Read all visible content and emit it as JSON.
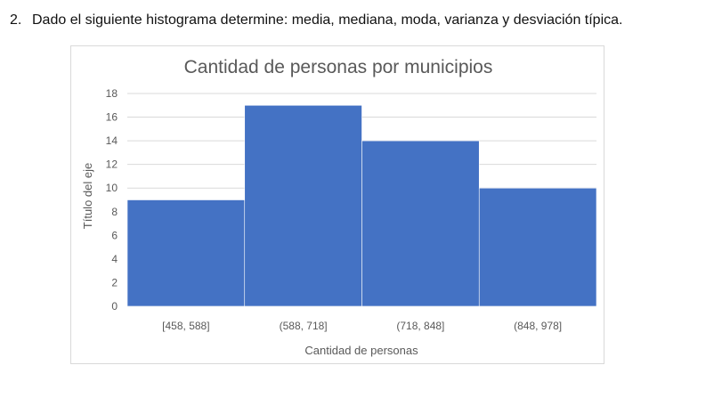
{
  "question": {
    "number": "2.",
    "text": "Dado el siguiente histograma determine: media, mediana, moda, varianza y desviación típica."
  },
  "chart_data": {
    "type": "bar",
    "title": "Cantidad de personas por municipios",
    "xlabel": "Cantidad de personas",
    "ylabel": "Título del eje",
    "categories": [
      "[458, 588]",
      "(588, 718]",
      "(718, 848]",
      "(848, 978]"
    ],
    "values": [
      9,
      17,
      14,
      10
    ],
    "ylim": [
      0,
      18
    ],
    "yticks": [
      "0",
      "2",
      "4",
      "6",
      "8",
      "10",
      "12",
      "14",
      "16",
      "18"
    ],
    "grid": true,
    "legend": "none",
    "bar_color": "#4472C4",
    "bar_gap": 0
  }
}
